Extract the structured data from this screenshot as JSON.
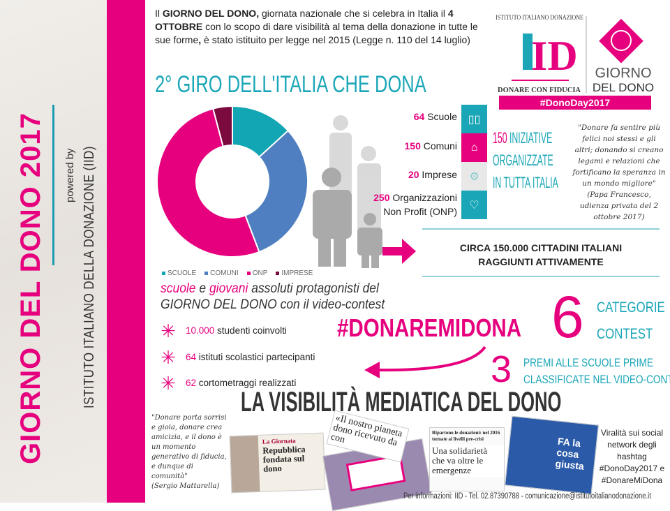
{
  "side": {
    "title": "GIORNO DEL DONO 2017",
    "powered": "powered by",
    "institute": "ISTITUTO ITALIANO DELLA DONAZIONE (IID)"
  },
  "intro": {
    "p1": "Il ",
    "b1": "GIORNO DEL DONO,",
    "p2": " giornata nazionale che si celebra in Italia il ",
    "b2": "4 OTTOBRE",
    "p3": " con lo scopo di dare visibilità al tema della donazione in tutte le sue forme",
    "b3": ",",
    "p4": " è stato istituito per legge nel 2015 (Legge n. 110 del 14 luglio)"
  },
  "title": "2° GIRO DELL'ITALIA CHE DONA",
  "logo": {
    "ring": "ISTITUTO ITALIANO DONAZIONE",
    "mono": "ID",
    "tagline": "DONARE CON FIDUCIA",
    "brand1": "GIORNO",
    "brand2": "DEL DONO",
    "hashtag": "#DonoDay2017"
  },
  "chart_data": {
    "type": "pie",
    "donut": true,
    "categories": [
      "SCUOLE",
      "COMUNI",
      "ONP",
      "IMPRESE"
    ],
    "values": [
      64,
      150,
      250,
      20
    ],
    "colors": [
      "#12a5b3",
      "#4f7fc1",
      "#e6007e",
      "#7b0a3f"
    ],
    "legend": "bottom"
  },
  "stats": [
    {
      "num": "64",
      "label": "Scuole"
    },
    {
      "num": "150",
      "label": "Comuni"
    },
    {
      "num": "20",
      "label": "Imprese"
    },
    {
      "num": "250",
      "label": "Organizzazioni",
      "label2": "Non Profit (ONP)"
    }
  ],
  "icons": [
    {
      "name": "book-icon",
      "glyph": "📖",
      "color": "#1aa6b7"
    },
    {
      "name": "building-icon",
      "glyph": "🏛",
      "color": "#e6007e"
    },
    {
      "name": "gears-icon",
      "glyph": "⚙",
      "color": "#e4e4e4"
    },
    {
      "name": "heart-icon",
      "glyph": "♡",
      "color": "#1aa6b7"
    }
  ],
  "initiatives": {
    "num": "150",
    "l1": " INIZIATIVE",
    "l2": "ORGANIZZATE",
    "l3": "IN TUTTA ITALIA"
  },
  "quote1": {
    "text": "\"Donare fa sentire più felici noi stessi e gli altri; donando si creano legami e relazioni che fortificano la speranza in un mondo migliore\"",
    "source": "(Papa Francesco, udienza privata del 2 ottobre 2017)"
  },
  "reach": {
    "l1": "CIRCA 150.000 CITTADINI ITALIANI",
    "l2": "RAGGIUNTI ATTIVAMENTE"
  },
  "schools": {
    "w1": "scuole",
    "w2": " e ",
    "w3": "giovani",
    "w4": " assoluti protagonisti del",
    "l2": "GIORNO DEL DONO con il video-contest"
  },
  "bullets": [
    {
      "num": "10.000",
      "text": " studenti coinvolti"
    },
    {
      "num": "64",
      "text": " istituti scolastici partecipanti"
    },
    {
      "num": "62",
      "text": " cortometraggi realizzati"
    }
  ],
  "hashtag": "#DONAREMIDONA",
  "contest": {
    "num": "6",
    "l1": "CATEGORIE",
    "l2": "CONTEST"
  },
  "prizes": {
    "num": "3",
    "l1": "PREMI ALLE SCUOLE PRIME",
    "l2": "CLASSIFICATE NEL VIDEO-CONTEST"
  },
  "visibility": "LA VISIBILITÀ MEDIATICA DEL DONO",
  "quote2": {
    "text": "\"Donare porta sorrisi e gioia, donare crea amicizia, e il dono è un momento generativo di fiducia, e dunque di comunità\"",
    "source": "(Sergio Mattarella)"
  },
  "clips": {
    "c1a": "La Giornata",
    "c1b": "Repubblica fondata sul dono",
    "c2": "«Il nostro pianeta dono ricevuto da con",
    "c3a": "Ripartono le donazioni: nel 2016 tornate ai livelli pre-crisi",
    "c3b": "Una solidarietà che va oltre le emergenze",
    "c4": "FA la cosa giusta"
  },
  "viral": {
    "l1": "Viralità sui social network degli hashtag",
    "h1": "#DonoDay2017 e",
    "h2": "#DonareMiDona"
  },
  "footer": "Per informazioni: IID - Tel. 02.87390788 - comunicazione@istitutoitalianodonazione.it"
}
